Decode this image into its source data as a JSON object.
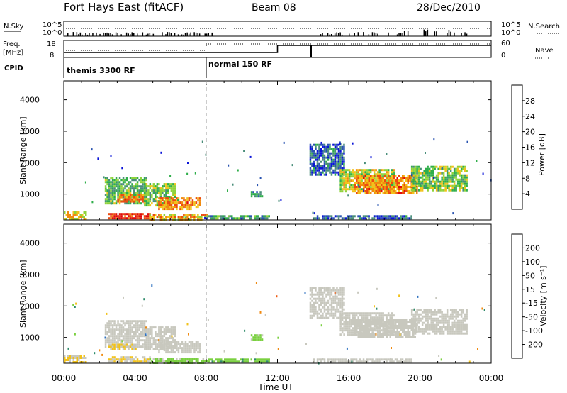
{
  "header": {
    "station": "Fort Hays East (fitACF)",
    "beam": "Beam 08",
    "date": "28/Dec/2010"
  },
  "strip": {
    "nsky_label": "N.Sky",
    "nsearch_label": "N.Search",
    "log_ticks": [
      "10^5",
      "10^0"
    ],
    "freq_label_1": "Freq.",
    "freq_label_2": "[MHz]",
    "freq_ticks": [
      "18",
      "8"
    ],
    "nave_label": "Nave",
    "nave_ticks": [
      "60",
      "0"
    ],
    "cpid_label": "CPID",
    "cpid_segments": [
      {
        "label": "themis 3300 RF",
        "start_hour": 0
      },
      {
        "label": "normal 150 RF",
        "start_hour": 8
      }
    ]
  },
  "colors": {
    "power_scale": [
      "#0a14d8",
      "#2a54b0",
      "#4a8e7a",
      "#2fae4a",
      "#8fd23a",
      "#f2c21a",
      "#f08a10",
      "#ec4a10",
      "#e00a0a"
    ],
    "velocity_scale": [
      "#1430c8",
      "#2f72c0",
      "#2d8a6a",
      "#7ad040",
      "#c8c8be",
      "#f2c21a",
      "#f08a10",
      "#ee5a10",
      "#e00a0a"
    ],
    "frame": "#000000"
  },
  "chart_data": [
    {
      "type": "heatmap",
      "title": "",
      "xlabel": "",
      "ylabel": "Slant Range [km]",
      "xlim": [
        0,
        24
      ],
      "ylim": [
        180,
        4600
      ],
      "yticks": [
        "1000",
        "2000",
        "3000",
        "4000"
      ],
      "colorbar": {
        "label": "Power [dB]",
        "ticks": [
          "4",
          "8",
          "12",
          "16",
          "20",
          "24",
          "28"
        ],
        "range": [
          0,
          30
        ]
      },
      "regions": [
        {
          "t0": 2.3,
          "t1": 4.6,
          "r0": 700,
          "r1": 1550,
          "value": 12
        },
        {
          "t0": 3.0,
          "t1": 4.5,
          "r0": 750,
          "r1": 1000,
          "value": 22
        },
        {
          "t0": 4.5,
          "t1": 6.2,
          "r0": 650,
          "r1": 1350,
          "value": 14
        },
        {
          "t0": 5.3,
          "t1": 7.6,
          "r0": 500,
          "r1": 900,
          "value": 22
        },
        {
          "t0": 0.0,
          "t1": 1.2,
          "r0": 200,
          "r1": 450,
          "value": 18
        },
        {
          "t0": 2.5,
          "t1": 4.8,
          "r0": 200,
          "r1": 400,
          "value": 27
        },
        {
          "t0": 4.8,
          "t1": 8.0,
          "r0": 200,
          "r1": 360,
          "value": 20
        },
        {
          "t0": 8.0,
          "t1": 11.5,
          "r0": 200,
          "r1": 330,
          "value": 10
        },
        {
          "t0": 10.5,
          "t1": 11.1,
          "r0": 900,
          "r1": 1100,
          "value": 8
        },
        {
          "t0": 13.8,
          "t1": 15.7,
          "r0": 1600,
          "r1": 2600,
          "value": 6
        },
        {
          "t0": 15.5,
          "t1": 18.5,
          "r0": 1100,
          "r1": 1800,
          "value": 16
        },
        {
          "t0": 16.3,
          "t1": 19.8,
          "r0": 1000,
          "r1": 1600,
          "value": 22
        },
        {
          "t0": 19.5,
          "t1": 22.6,
          "r0": 1150,
          "r1": 1900,
          "value": 14
        },
        {
          "t0": 14.0,
          "t1": 19.5,
          "r0": 200,
          "r1": 330,
          "value": 6
        }
      ]
    },
    {
      "type": "heatmap",
      "title": "",
      "xlabel": "Time UT",
      "ylabel": "Slant Range [km]",
      "xlim": [
        0,
        24
      ],
      "ylim": [
        180,
        4600
      ],
      "xticks": [
        "00:00",
        "04:00",
        "08:00",
        "12:00",
        "16:00",
        "20:00",
        "00:00"
      ],
      "yticks": [
        "1000",
        "2000",
        "3000",
        "4000"
      ],
      "colorbar": {
        "label": "Velocity [m s⁻¹]",
        "ticks": [
          "200",
          "100",
          "50",
          "15",
          "-15",
          "-50",
          "-100",
          "-200"
        ],
        "range": [
          -250,
          250
        ]
      },
      "regions": [
        {
          "t0": 2.3,
          "t1": 4.6,
          "r0": 700,
          "r1": 1550,
          "value": 0
        },
        {
          "t0": 4.5,
          "t1": 6.2,
          "r0": 650,
          "r1": 1350,
          "value": 5
        },
        {
          "t0": 5.3,
          "t1": 7.6,
          "r0": 500,
          "r1": 900,
          "value": 0
        },
        {
          "t0": 2.5,
          "t1": 4.0,
          "r0": 600,
          "r1": 800,
          "value": 30
        },
        {
          "t0": 0.0,
          "t1": 1.2,
          "r0": 200,
          "r1": 450,
          "value": 30
        },
        {
          "t0": 2.5,
          "t1": 4.8,
          "r0": 200,
          "r1": 400,
          "value": 30
        },
        {
          "t0": 4.8,
          "t1": 8.0,
          "r0": 200,
          "r1": 360,
          "value": -40
        },
        {
          "t0": 8.0,
          "t1": 11.5,
          "r0": 200,
          "r1": 330,
          "value": -70
        },
        {
          "t0": 10.5,
          "t1": 11.1,
          "r0": 900,
          "r1": 1100,
          "value": -40
        },
        {
          "t0": 13.8,
          "t1": 15.7,
          "r0": 1600,
          "r1": 2600,
          "value": 0
        },
        {
          "t0": 15.5,
          "t1": 18.5,
          "r0": 1100,
          "r1": 1800,
          "value": 0
        },
        {
          "t0": 16.3,
          "t1": 19.8,
          "r0": 1000,
          "r1": 1600,
          "value": 0
        },
        {
          "t0": 19.5,
          "t1": 22.6,
          "r0": 1150,
          "r1": 1900,
          "value": 0
        },
        {
          "t0": 14.0,
          "t1": 19.5,
          "r0": 200,
          "r1": 330,
          "value": 0
        }
      ]
    }
  ]
}
